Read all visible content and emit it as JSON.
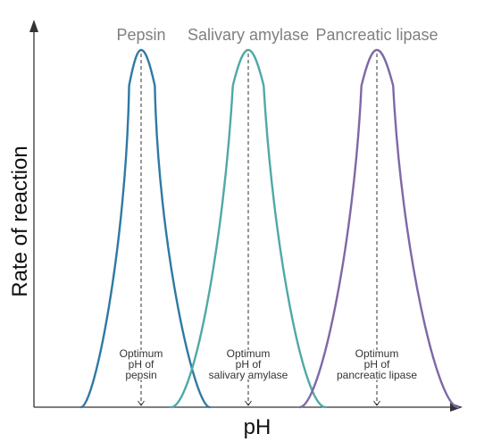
{
  "chart_data": {
    "type": "line",
    "xlabel": "pH",
    "ylabel": "Rate of reaction",
    "xlim": [
      0,
      10
    ],
    "ylim": [
      0,
      1
    ],
    "grid": false,
    "legend": "none",
    "series": [
      {
        "name": "Pepsin",
        "color": "#2f79a3",
        "optimum_ph": 2.5,
        "peak_rate": 1.0,
        "optimum_label": [
          "Optimum",
          "pH of",
          "pepsin"
        ]
      },
      {
        "name": "Salivary amylase",
        "color": "#4fa9a6",
        "optimum_ph": 5.0,
        "peak_rate": 1.0,
        "optimum_label": [
          "Optimum",
          "pH of",
          "salivary amylase"
        ]
      },
      {
        "name": "Pancreatic lipase",
        "color": "#7e68a6",
        "optimum_ph": 8.0,
        "peak_rate": 1.0,
        "optimum_label": [
          "Optimum",
          "pH of",
          "pancreatic lipase"
        ]
      }
    ]
  }
}
